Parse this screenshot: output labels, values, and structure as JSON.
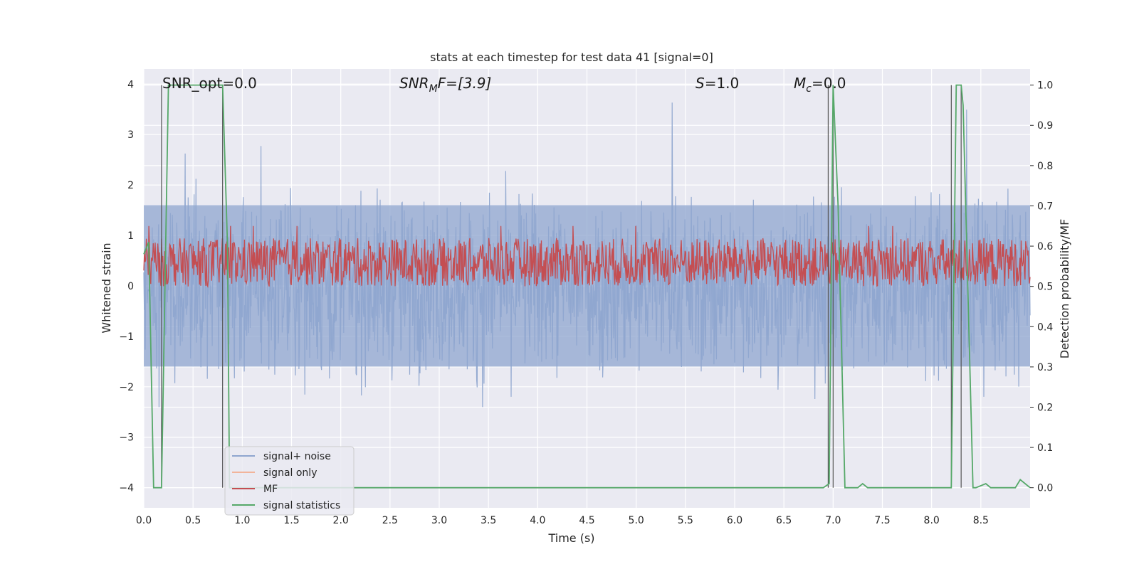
{
  "chart_data": {
    "type": "line",
    "title": "stats at each timestep for test data 41 [signal=0]",
    "xlabel": "Time (s)",
    "ylabel_left": "Whitened strain",
    "ylabel_right": "Detection probability/MF",
    "xlim": [
      0.0,
      9.0
    ],
    "ylim_left": [
      -4.4,
      4.3
    ],
    "ylim_right": [
      -0.05,
      1.04
    ],
    "x_ticks": [
      "0.0",
      "0.5",
      "1.0",
      "1.5",
      "2.0",
      "2.5",
      "3.0",
      "3.5",
      "4.0",
      "4.5",
      "5.0",
      "5.5",
      "6.0",
      "6.5",
      "7.0",
      "7.5",
      "8.0",
      "8.5"
    ],
    "y_ticks_left": [
      "−4",
      "−3",
      "−2",
      "−1",
      "0",
      "1",
      "2",
      "3",
      "4"
    ],
    "y_ticks_right": [
      "0.0",
      "0.1",
      "0.2",
      "0.3",
      "0.4",
      "0.5",
      "0.6",
      "0.7",
      "0.8",
      "0.9",
      "1.0"
    ],
    "grid": true,
    "legend_position": "lower-left",
    "annotations": {
      "snr_opt": "SNR_opt=0.0",
      "snr_mf_main": "SNR",
      "snr_mf_sub": "M",
      "snr_mf_rest": "F=[3.9]",
      "s_main": "S",
      "s_rest": "=1.0",
      "mc_main": "M",
      "mc_sub": "c",
      "mc_rest": "=0.0"
    },
    "series": [
      {
        "name": "signal+ noise",
        "color": "#8fa6cf",
        "axis": "left",
        "envelope": [
          -1.6,
          1.6
        ],
        "peak": 3.8
      },
      {
        "name": "signal only",
        "color": "#f2b49a",
        "axis": "left",
        "values": "none"
      },
      {
        "name": "MF",
        "color": "#c44e52",
        "axis": "right",
        "range": [
          0.5,
          0.62
        ]
      },
      {
        "name": "signal statistics",
        "color": "#55a868",
        "axis": "right",
        "x": [
          0.0,
          0.05,
          0.1,
          0.13,
          0.18,
          0.25,
          0.3,
          0.8,
          0.85,
          0.87,
          6.9,
          6.96,
          7.0,
          7.05,
          7.12,
          7.25,
          7.3,
          7.35,
          8.2,
          8.25,
          8.3,
          8.32,
          8.42,
          8.45,
          8.55,
          8.6,
          8.65,
          8.85,
          8.9,
          9.0
        ],
        "y": [
          0.58,
          0.61,
          0.0,
          0.0,
          0.0,
          1.0,
          1.0,
          1.0,
          0.6,
          0.0,
          0.0,
          0.01,
          1.0,
          0.7,
          0.0,
          0.0,
          0.01,
          0.0,
          0.0,
          1.0,
          1.0,
          0.95,
          0.0,
          0.0,
          0.01,
          0.0,
          0.0,
          0.0,
          0.02,
          0.0
        ]
      }
    ],
    "vertical_markers": [
      0.18,
      0.8,
      6.95,
      7.0,
      8.2,
      8.3
    ]
  },
  "colors": {
    "background": "#eaeaf2",
    "grid": "#ffffff",
    "marker": "#555555"
  }
}
